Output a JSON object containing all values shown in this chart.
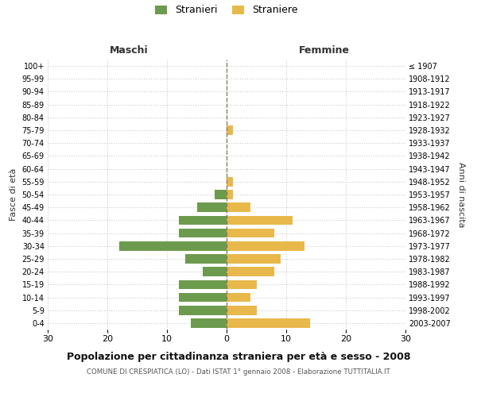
{
  "age_groups": [
    "100+",
    "95-99",
    "90-94",
    "85-89",
    "80-84",
    "75-79",
    "70-74",
    "65-69",
    "60-64",
    "55-59",
    "50-54",
    "45-49",
    "40-44",
    "35-39",
    "30-34",
    "25-29",
    "20-24",
    "15-19",
    "10-14",
    "5-9",
    "0-4"
  ],
  "birth_years": [
    "≤ 1907",
    "1908-1912",
    "1913-1917",
    "1918-1922",
    "1923-1927",
    "1928-1932",
    "1933-1937",
    "1938-1942",
    "1943-1947",
    "1948-1952",
    "1953-1957",
    "1958-1962",
    "1963-1967",
    "1968-1972",
    "1973-1977",
    "1978-1982",
    "1983-1987",
    "1988-1992",
    "1993-1997",
    "1998-2002",
    "2003-2007"
  ],
  "maschi": [
    0,
    0,
    0,
    0,
    0,
    0,
    0,
    0,
    0,
    0,
    2,
    5,
    8,
    8,
    18,
    7,
    4,
    8,
    8,
    8,
    6
  ],
  "femmine": [
    0,
    0,
    0,
    0,
    0,
    1,
    0,
    0,
    0,
    1,
    1,
    4,
    11,
    8,
    13,
    9,
    8,
    5,
    4,
    5,
    14
  ],
  "male_color": "#6d9b4e",
  "female_color": "#e8b84b",
  "center_line_color": "#808060",
  "grid_color": "#cccccc",
  "background_color": "#ffffff",
  "title": "Popolazione per cittadinanza straniera per età e sesso - 2008",
  "subtitle": "COMUNE DI CRESPIATICA (LO) - Dati ISTAT 1° gennaio 2008 - Elaborazione TUTTITALIA.IT",
  "xlabel_left": "Maschi",
  "xlabel_right": "Femmine",
  "ylabel_left": "Fasce di età",
  "ylabel_right": "Anni di nascita",
  "legend_male": "Stranieri",
  "legend_female": "Straniere",
  "xlim": 30
}
